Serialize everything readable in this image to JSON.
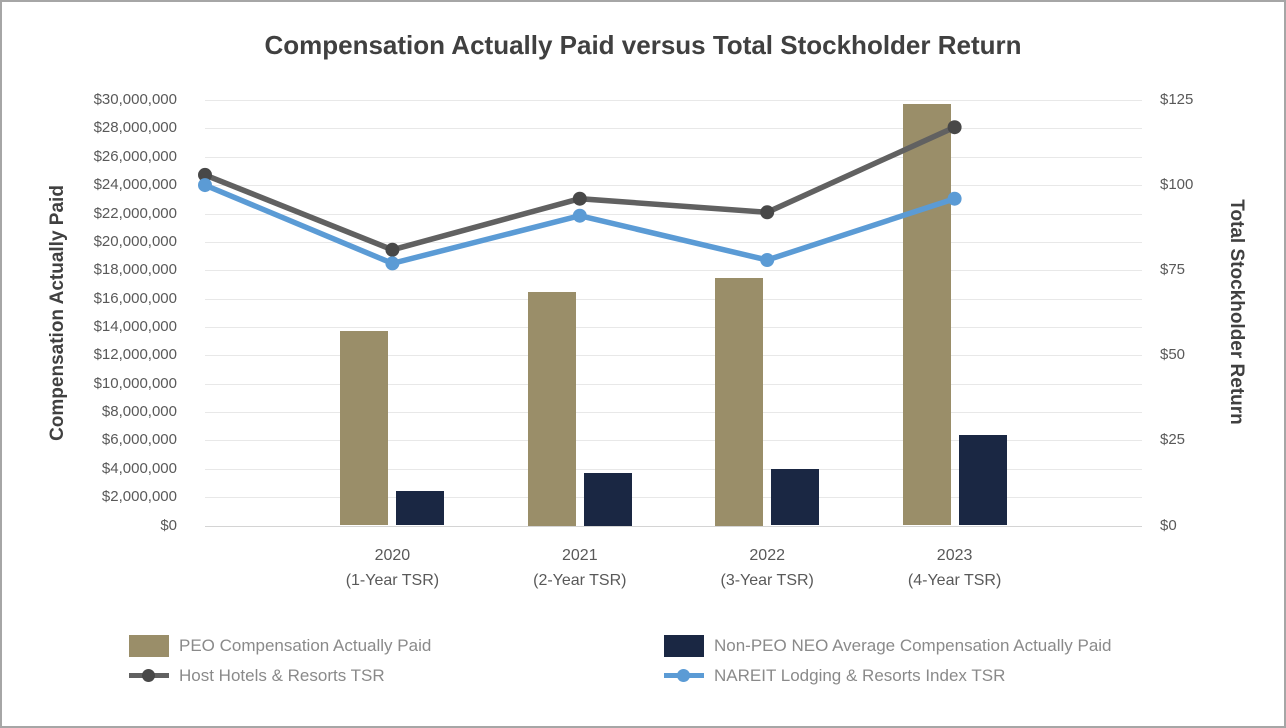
{
  "title": "Compensation Actually Paid versus Total Stockholder Return",
  "left_axis": {
    "title": "Compensation Actually Paid",
    "ticks": [
      "$30,000,000",
      "$28,000,000",
      "$26,000,000",
      "$24,000,000",
      "$22,000,000",
      "$20,000,000",
      "$18,000,000",
      "$16,000,000",
      "$14,000,000",
      "$12,000,000",
      "$10,000,000",
      "$8,000,000",
      "$6,000,000",
      "$4,000,000",
      "$2,000,000",
      "$0"
    ]
  },
  "right_axis": {
    "title": "Total Stockholder Return",
    "ticks": [
      "$125",
      "$100",
      "$75",
      "$50",
      "$25",
      "$0"
    ]
  },
  "x_axis": {
    "categories": [
      {
        "year": "2020",
        "sub": "(1-Year TSR)"
      },
      {
        "year": "2021",
        "sub": "(2-Year TSR)"
      },
      {
        "year": "2022",
        "sub": "(3-Year TSR)"
      },
      {
        "year": "2023",
        "sub": "(4-Year TSR)"
      }
    ]
  },
  "chart_data": {
    "type": "combo-bar-line",
    "categories": [
      "2020 (1-Year TSR)",
      "2021 (2-Year TSR)",
      "2022 (3-Year TSR)",
      "2023 (4-Year TSR)"
    ],
    "left_axis_range": [
      0,
      30000000
    ],
    "left_axis_step": 2000000,
    "right_axis_range": [
      0,
      125
    ],
    "right_axis_step": 25,
    "grid": "horizontal-only",
    "legend_position": "bottom",
    "bar_series": [
      {
        "name": "PEO Compensation Actually Paid",
        "color": "#9a8e69",
        "axis": "left",
        "values": [
          13700000,
          16500000,
          17450000,
          29700000
        ]
      },
      {
        "name": "Non-PEO NEO Average Compensation Actually Paid",
        "color": "#1a2743",
        "axis": "left",
        "values": [
          2450000,
          3700000,
          4000000,
          6400000
        ]
      }
    ],
    "line_series": [
      {
        "name": "Host Hotels & Resorts TSR",
        "color": "#616161",
        "marker_color": "#484848",
        "axis": "right",
        "points_x": [
          "axis-start",
          "2020",
          "2021",
          "2022",
          "2023"
        ],
        "values": [
          103,
          81,
          96,
          92,
          117
        ]
      },
      {
        "name": "NAREIT Lodging & Resorts Index TSR",
        "color": "#5b9bd5",
        "marker_color": "#5b9bd5",
        "axis": "right",
        "points_x": [
          "axis-start",
          "2020",
          "2021",
          "2022",
          "2023"
        ],
        "values": [
          100,
          77,
          91,
          78,
          96
        ]
      }
    ]
  }
}
